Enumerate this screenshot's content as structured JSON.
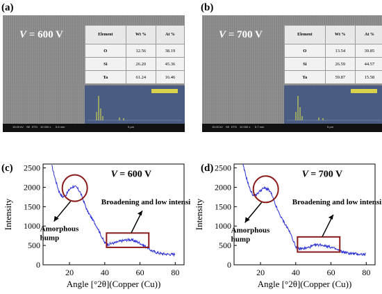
{
  "panels": {
    "a": {
      "label": "(a)",
      "voltage_label": "= 600 V",
      "v_symbol": "V",
      "table": {
        "headers": [
          "Element",
          "Wt %",
          "At %"
        ],
        "rows": [
          [
            "O",
            "12.56",
            "38.19"
          ],
          [
            "Si",
            "26.20",
            "45.36"
          ],
          [
            "Ta",
            "61.24",
            "16.46"
          ]
        ]
      },
      "sem_bar": {
        "hv": "15.00 kV",
        "mode": "SE",
        "det": "ETD",
        "mag": "10 000 x",
        "wd": "5.6 mm",
        "scale": "5 μm"
      }
    },
    "b": {
      "label": "(b)",
      "voltage_label": "= 700 V",
      "v_symbol": "V",
      "table": {
        "headers": [
          "Element",
          "Wt %",
          "At %"
        ],
        "rows": [
          [
            "O",
            "13.54",
            "39.85"
          ],
          [
            "Si",
            "26.59",
            "44.57"
          ],
          [
            "Ta",
            "59.87",
            "15.58"
          ]
        ]
      },
      "sem_bar": {
        "hv": "15.00 kV",
        "mode": "SE",
        "det": "ETD",
        "mag": "10 000 x",
        "wd": "5.7 mm",
        "scale": "5 μm"
      }
    },
    "c": {
      "label": "(c)",
      "voltage_label": "= 600 V",
      "v_symbol": "V"
    },
    "d": {
      "label": "(d)",
      "voltage_label": "= 700 V",
      "v_symbol": "V"
    }
  },
  "chart_data": [
    {
      "type": "line",
      "panel": "c",
      "xlabel": "Angle  [°2θ](Copper (Cu))",
      "ylabel": "Intensity",
      "xlim": [
        5,
        85
      ],
      "ylim": [
        0,
        2600
      ],
      "xticks": [
        20,
        40,
        60,
        80
      ],
      "yticks": [
        0,
        500,
        1000,
        1500,
        2000,
        2500
      ],
      "x": [
        10,
        12,
        14,
        16,
        18,
        20,
        22,
        24,
        26,
        28,
        30,
        32,
        34,
        36,
        38,
        40,
        42,
        44,
        46,
        48,
        50,
        52,
        54,
        56,
        58,
        60,
        62,
        64,
        66,
        68,
        70,
        72,
        74,
        76,
        78,
        80
      ],
      "y": [
        2550,
        2200,
        1900,
        1750,
        1800,
        1950,
        2020,
        2000,
        1880,
        1650,
        1400,
        1250,
        1100,
        950,
        750,
        560,
        530,
        550,
        570,
        600,
        620,
        640,
        650,
        630,
        600,
        560,
        500,
        450,
        380,
        340,
        310,
        290,
        280,
        275,
        270,
        270
      ],
      "annotations": [
        "Amorphous hump",
        "Broadening and low intensity"
      ]
    },
    {
      "type": "line",
      "panel": "d",
      "xlabel": "Angle  [°2θ](Copper (Cu))",
      "ylabel": "Intensity",
      "xlim": [
        5,
        85
      ],
      "ylim": [
        0,
        2600
      ],
      "xticks": [
        20,
        40,
        60,
        80
      ],
      "yticks": [
        0,
        500,
        1000,
        1500,
        2000,
        2500
      ],
      "x": [
        10,
        12,
        14,
        16,
        18,
        20,
        22,
        24,
        26,
        28,
        30,
        32,
        34,
        36,
        38,
        40,
        42,
        44,
        46,
        48,
        50,
        52,
        54,
        56,
        58,
        60,
        62,
        64,
        66,
        68,
        70,
        72,
        74,
        76,
        78,
        80
      ],
      "y": [
        2580,
        2250,
        1950,
        1780,
        1820,
        1920,
        1980,
        1960,
        1850,
        1600,
        1380,
        1200,
        1050,
        900,
        700,
        470,
        410,
        420,
        430,
        460,
        490,
        510,
        520,
        500,
        480,
        450,
        420,
        380,
        340,
        320,
        300,
        290,
        280,
        275,
        270,
        270
      ],
      "annotations": [
        "Amorphous hump",
        "Broadening and low intensity"
      ]
    }
  ],
  "annotation_text": {
    "hump1": "Amorphous",
    "hump2": "hump",
    "broad": "Broadening and low intensity"
  }
}
